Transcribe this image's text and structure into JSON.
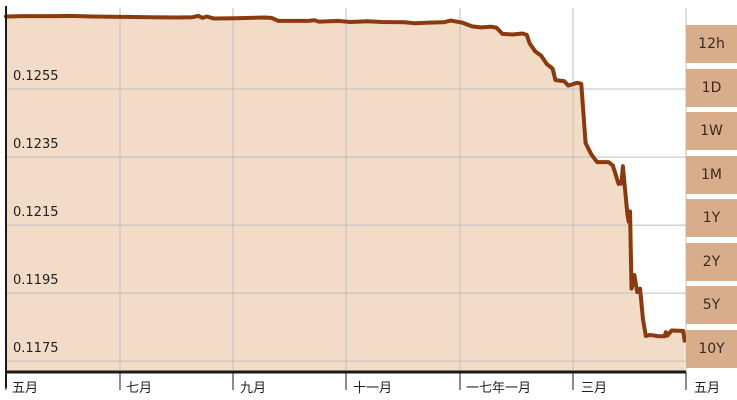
{
  "chart_data": {
    "type": "area",
    "y_ticks": [
      "0.1255",
      "0.1235",
      "0.1215",
      "0.1195",
      "0.1175"
    ],
    "x_ticks": [
      "五月",
      "七月",
      "九月",
      "十一月",
      "一七年一月",
      "三月",
      "五月"
    ],
    "ylim": [
      0.1168,
      0.1275
    ],
    "grid": true,
    "colors": {
      "line": "#8b3a0f",
      "fill": "#f2dcc8",
      "grid": "#bfbfbf",
      "axis": "#1a1a1a",
      "button_bg": "#d8ad8b"
    },
    "series": [
      {
        "points": [
          [
            0,
            0.12725
          ],
          [
            12,
            0.12726
          ],
          [
            24,
            0.12726
          ],
          [
            36,
            0.12726
          ],
          [
            44,
            0.12727
          ],
          [
            60,
            0.12725
          ],
          [
            80,
            0.12724
          ],
          [
            100,
            0.12723
          ],
          [
            120,
            0.12722
          ],
          [
            130,
            0.12723
          ],
          [
            134,
            0.12727
          ],
          [
            137,
            0.12721
          ],
          [
            140,
            0.12725
          ],
          [
            145,
            0.12719
          ],
          [
            160,
            0.1272
          ],
          [
            180,
            0.12722
          ],
          [
            185,
            0.12721
          ],
          [
            190,
            0.12712
          ],
          [
            210,
            0.12712
          ],
          [
            215,
            0.12714
          ],
          [
            218,
            0.1271
          ],
          [
            232,
            0.12712
          ],
          [
            240,
            0.12709
          ],
          [
            252,
            0.12711
          ],
          [
            262,
            0.12709
          ],
          [
            278,
            0.12708
          ],
          [
            285,
            0.12705
          ],
          [
            295,
            0.12707
          ],
          [
            305,
            0.12708
          ],
          [
            310,
            0.12713
          ],
          [
            318,
            0.12707
          ],
          [
            325,
            0.12696
          ],
          [
            331,
            0.12693
          ],
          [
            338,
            0.12695
          ],
          [
            342,
            0.12692
          ],
          [
            346,
            0.12674
          ],
          [
            353,
            0.12672
          ],
          [
            360,
            0.12675
          ],
          [
            363,
            0.12671
          ],
          [
            365,
            0.12646
          ],
          [
            369,
            0.12622
          ],
          [
            373,
            0.1261
          ],
          [
            377,
            0.12585
          ],
          [
            381,
            0.12572
          ],
          [
            383,
            0.12538
          ],
          [
            389,
            0.12535
          ],
          [
            392,
            0.12522
          ],
          [
            398,
            0.1253
          ],
          [
            401,
            0.12527
          ],
          [
            404,
            0.12353
          ],
          [
            408,
            0.1232
          ],
          [
            412,
            0.12297
          ],
          [
            420,
            0.12297
          ],
          [
            423,
            0.12287
          ],
          [
            427,
            0.12233
          ],
          [
            429,
            0.12234
          ],
          [
            430,
            0.12285
          ],
          [
            433,
            0.1215
          ],
          [
            434,
            0.12122
          ],
          [
            435,
            0.12152
          ],
          [
            436,
            0.11925
          ],
          [
            438,
            0.11965
          ],
          [
            440,
            0.11915
          ],
          [
            442,
            0.11925
          ],
          [
            444,
            0.11835
          ],
          [
            446,
            0.11786
          ],
          [
            449,
            0.11789
          ],
          [
            455,
            0.11785
          ],
          [
            459,
            0.11785
          ],
          [
            460,
            0.11797
          ],
          [
            461,
            0.11787
          ],
          [
            464,
            0.11802
          ],
          [
            472,
            0.11801
          ],
          [
            473,
            0.11772
          ]
        ]
      }
    ],
    "range_buttons": [
      "12h",
      "1D",
      "1W",
      "1M",
      "1Y",
      "2Y",
      "5Y",
      "10Y"
    ]
  }
}
